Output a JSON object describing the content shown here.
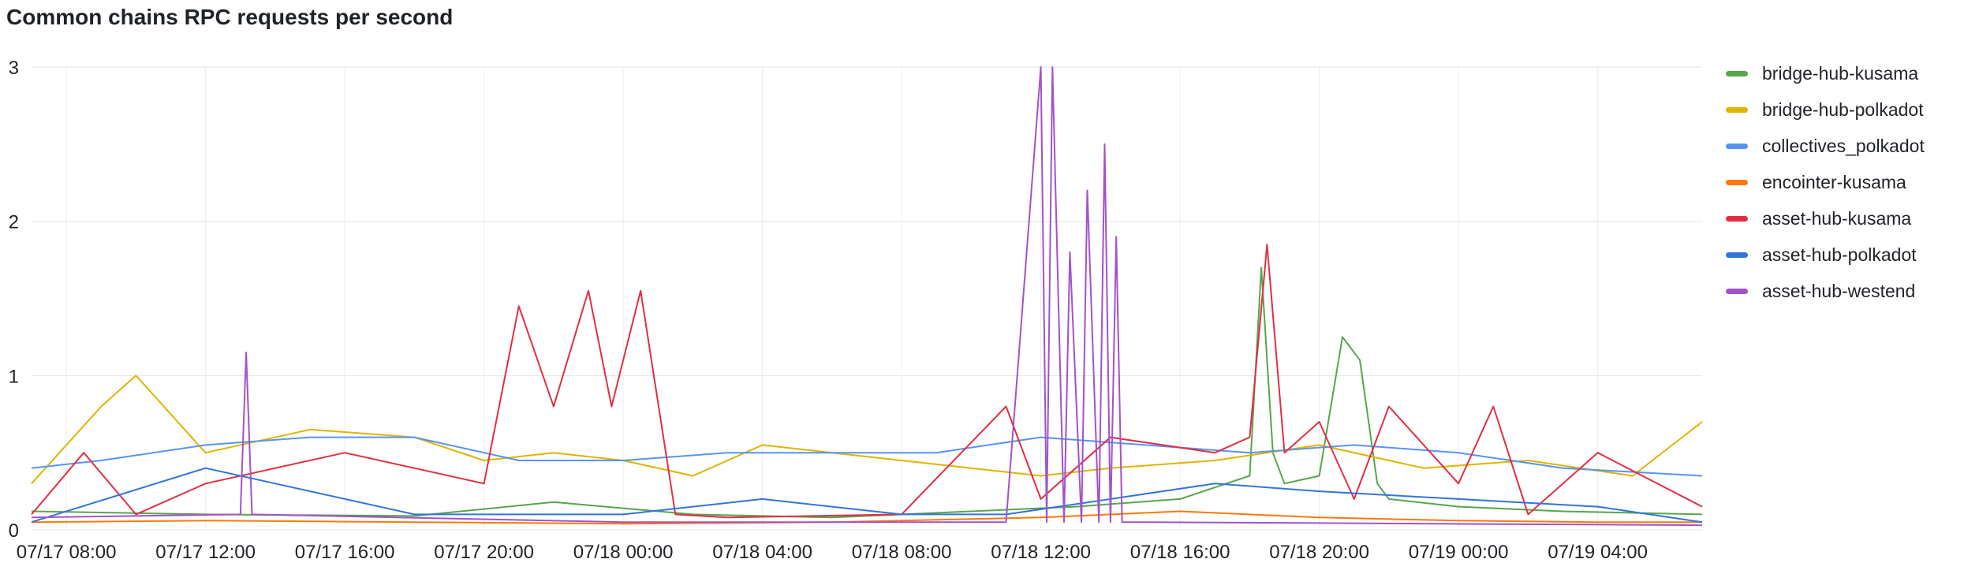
{
  "panel": {
    "title": "Common chains RPC requests per second"
  },
  "chart_data": {
    "type": "line",
    "title": "Common chains RPC requests per second",
    "xlabel": "",
    "ylabel": "",
    "ylim": [
      0,
      3
    ],
    "yticks": [
      0,
      1,
      2,
      3
    ],
    "xlim": [
      "07/17 07:00",
      "07/19 07:00"
    ],
    "xticks": [
      "07/17 08:00",
      "07/17 12:00",
      "07/17 16:00",
      "07/17 20:00",
      "07/18 00:00",
      "07/18 04:00",
      "07/18 08:00",
      "07/18 12:00",
      "07/18 16:00",
      "07/18 20:00",
      "07/19 00:00",
      "07/19 04:00"
    ],
    "grid": true,
    "legend_position": "right",
    "series": [
      {
        "name": "bridge-hub-kusama",
        "color": "#56a64b",
        "x": [
          "07/17 07:00",
          "07/17 12:00",
          "07/17 18:00",
          "07/17 22:00",
          "07/18 02:00",
          "07/18 06:00",
          "07/18 10:00",
          "07/18 13:00",
          "07/18 16:00",
          "07/18 18:00",
          "07/18 18:20",
          "07/18 18:40",
          "07/18 19:00",
          "07/18 20:00",
          "07/18 20:40",
          "07/18 21:10",
          "07/18 21:40",
          "07/18 22:00",
          "07/19 00:00",
          "07/19 03:00",
          "07/19 07:00"
        ],
        "values": [
          0.12,
          0.1,
          0.09,
          0.18,
          0.1,
          0.08,
          0.12,
          0.15,
          0.2,
          0.35,
          1.7,
          0.5,
          0.3,
          0.35,
          1.25,
          1.1,
          0.3,
          0.2,
          0.15,
          0.12,
          0.1
        ]
      },
      {
        "name": "bridge-hub-polkadot",
        "color": "#e0b400",
        "x": [
          "07/17 07:00",
          "07/17 09:00",
          "07/17 10:00",
          "07/17 11:00",
          "07/17 12:00",
          "07/17 15:00",
          "07/17 18:00",
          "07/17 20:00",
          "07/17 22:00",
          "07/18 00:00",
          "07/18 02:00",
          "07/18 04:00",
          "07/18 06:00",
          "07/18 08:00",
          "07/18 10:00",
          "07/18 12:00",
          "07/18 14:00",
          "07/18 17:00",
          "07/18 20:00",
          "07/18 23:00",
          "07/19 02:00",
          "07/19 05:00",
          "07/19 07:00"
        ],
        "values": [
          0.3,
          0.8,
          1.0,
          0.75,
          0.5,
          0.65,
          0.6,
          0.45,
          0.5,
          0.45,
          0.35,
          0.55,
          0.5,
          0.45,
          0.4,
          0.35,
          0.4,
          0.45,
          0.55,
          0.4,
          0.45,
          0.35,
          0.7
        ]
      },
      {
        "name": "collectives_polkadot",
        "color": "#5794f2",
        "x": [
          "07/17 07:00",
          "07/17 09:00",
          "07/17 12:00",
          "07/17 15:00",
          "07/17 18:00",
          "07/17 21:00",
          "07/18 00:00",
          "07/18 03:00",
          "07/18 06:00",
          "07/18 09:00",
          "07/18 12:00",
          "07/18 15:00",
          "07/18 18:00",
          "07/18 21:00",
          "07/19 00:00",
          "07/19 03:00",
          "07/19 07:00"
        ],
        "values": [
          0.4,
          0.45,
          0.55,
          0.6,
          0.6,
          0.45,
          0.45,
          0.5,
          0.5,
          0.5,
          0.6,
          0.55,
          0.5,
          0.55,
          0.5,
          0.4,
          0.35
        ]
      },
      {
        "name": "encointer-kusama",
        "color": "#ff780a",
        "x": [
          "07/17 07:00",
          "07/17 12:00",
          "07/17 18:00",
          "07/18 00:00",
          "07/18 06:00",
          "07/18 12:00",
          "07/18 16:00",
          "07/18 20:00",
          "07/19 00:00",
          "07/19 04:00",
          "07/19 07:00"
        ],
        "values": [
          0.05,
          0.06,
          0.05,
          0.04,
          0.05,
          0.08,
          0.12,
          0.08,
          0.06,
          0.05,
          0.05
        ]
      },
      {
        "name": "asset-hub-kusama",
        "color": "#e02f44",
        "x": [
          "07/17 07:00",
          "07/17 08:30",
          "07/17 10:00",
          "07/17 12:00",
          "07/17 16:00",
          "07/17 20:00",
          "07/17 21:00",
          "07/17 22:00",
          "07/17 23:00",
          "07/17 23:40",
          "07/18 00:30",
          "07/18 01:30",
          "07/18 03:00",
          "07/18 08:00",
          "07/18 11:00",
          "07/18 12:00",
          "07/18 14:00",
          "07/18 17:00",
          "07/18 18:00",
          "07/18 18:30",
          "07/18 19:00",
          "07/18 20:00",
          "07/18 21:00",
          "07/18 22:00",
          "07/19 00:00",
          "07/19 01:00",
          "07/19 02:00",
          "07/19 04:00",
          "07/19 07:00"
        ],
        "values": [
          0.1,
          0.5,
          0.1,
          0.3,
          0.5,
          0.3,
          1.45,
          0.8,
          1.55,
          0.8,
          1.55,
          0.1,
          0.08,
          0.1,
          0.8,
          0.2,
          0.6,
          0.5,
          0.6,
          1.85,
          0.5,
          0.7,
          0.2,
          0.8,
          0.3,
          0.8,
          0.1,
          0.5,
          0.15
        ]
      },
      {
        "name": "asset-hub-polkadot",
        "color": "#3274d9",
        "x": [
          "07/17 07:00",
          "07/17 12:00",
          "07/17 18:00",
          "07/18 00:00",
          "07/18 04:00",
          "07/18 08:00",
          "07/18 11:00",
          "07/18 14:00",
          "07/18 17:00",
          "07/18 20:00",
          "07/19 00:00",
          "07/19 04:00",
          "07/19 07:00"
        ],
        "values": [
          0.05,
          0.4,
          0.1,
          0.1,
          0.2,
          0.1,
          0.1,
          0.2,
          0.3,
          0.25,
          0.2,
          0.15,
          0.05
        ]
      },
      {
        "name": "asset-hub-westend",
        "color": "#a352cc",
        "x": [
          "07/17 07:00",
          "07/17 13:00",
          "07/17 13:10",
          "07/17 13:20",
          "07/18 00:00",
          "07/18 11:00",
          "07/18 12:00",
          "07/18 12:10",
          "07/18 12:20",
          "07/18 12:40",
          "07/18 12:50",
          "07/18 13:10",
          "07/18 13:20",
          "07/18 13:40",
          "07/18 13:50",
          "07/18 14:00",
          "07/18 14:10",
          "07/18 14:20",
          "07/18 15:00",
          "07/19 07:00"
        ],
        "values": [
          0.08,
          0.1,
          1.15,
          0.1,
          0.05,
          0.05,
          3.0,
          0.05,
          3.0,
          0.05,
          1.8,
          0.05,
          2.2,
          0.05,
          2.5,
          0.05,
          1.9,
          0.05,
          0.05,
          0.03
        ]
      }
    ]
  }
}
